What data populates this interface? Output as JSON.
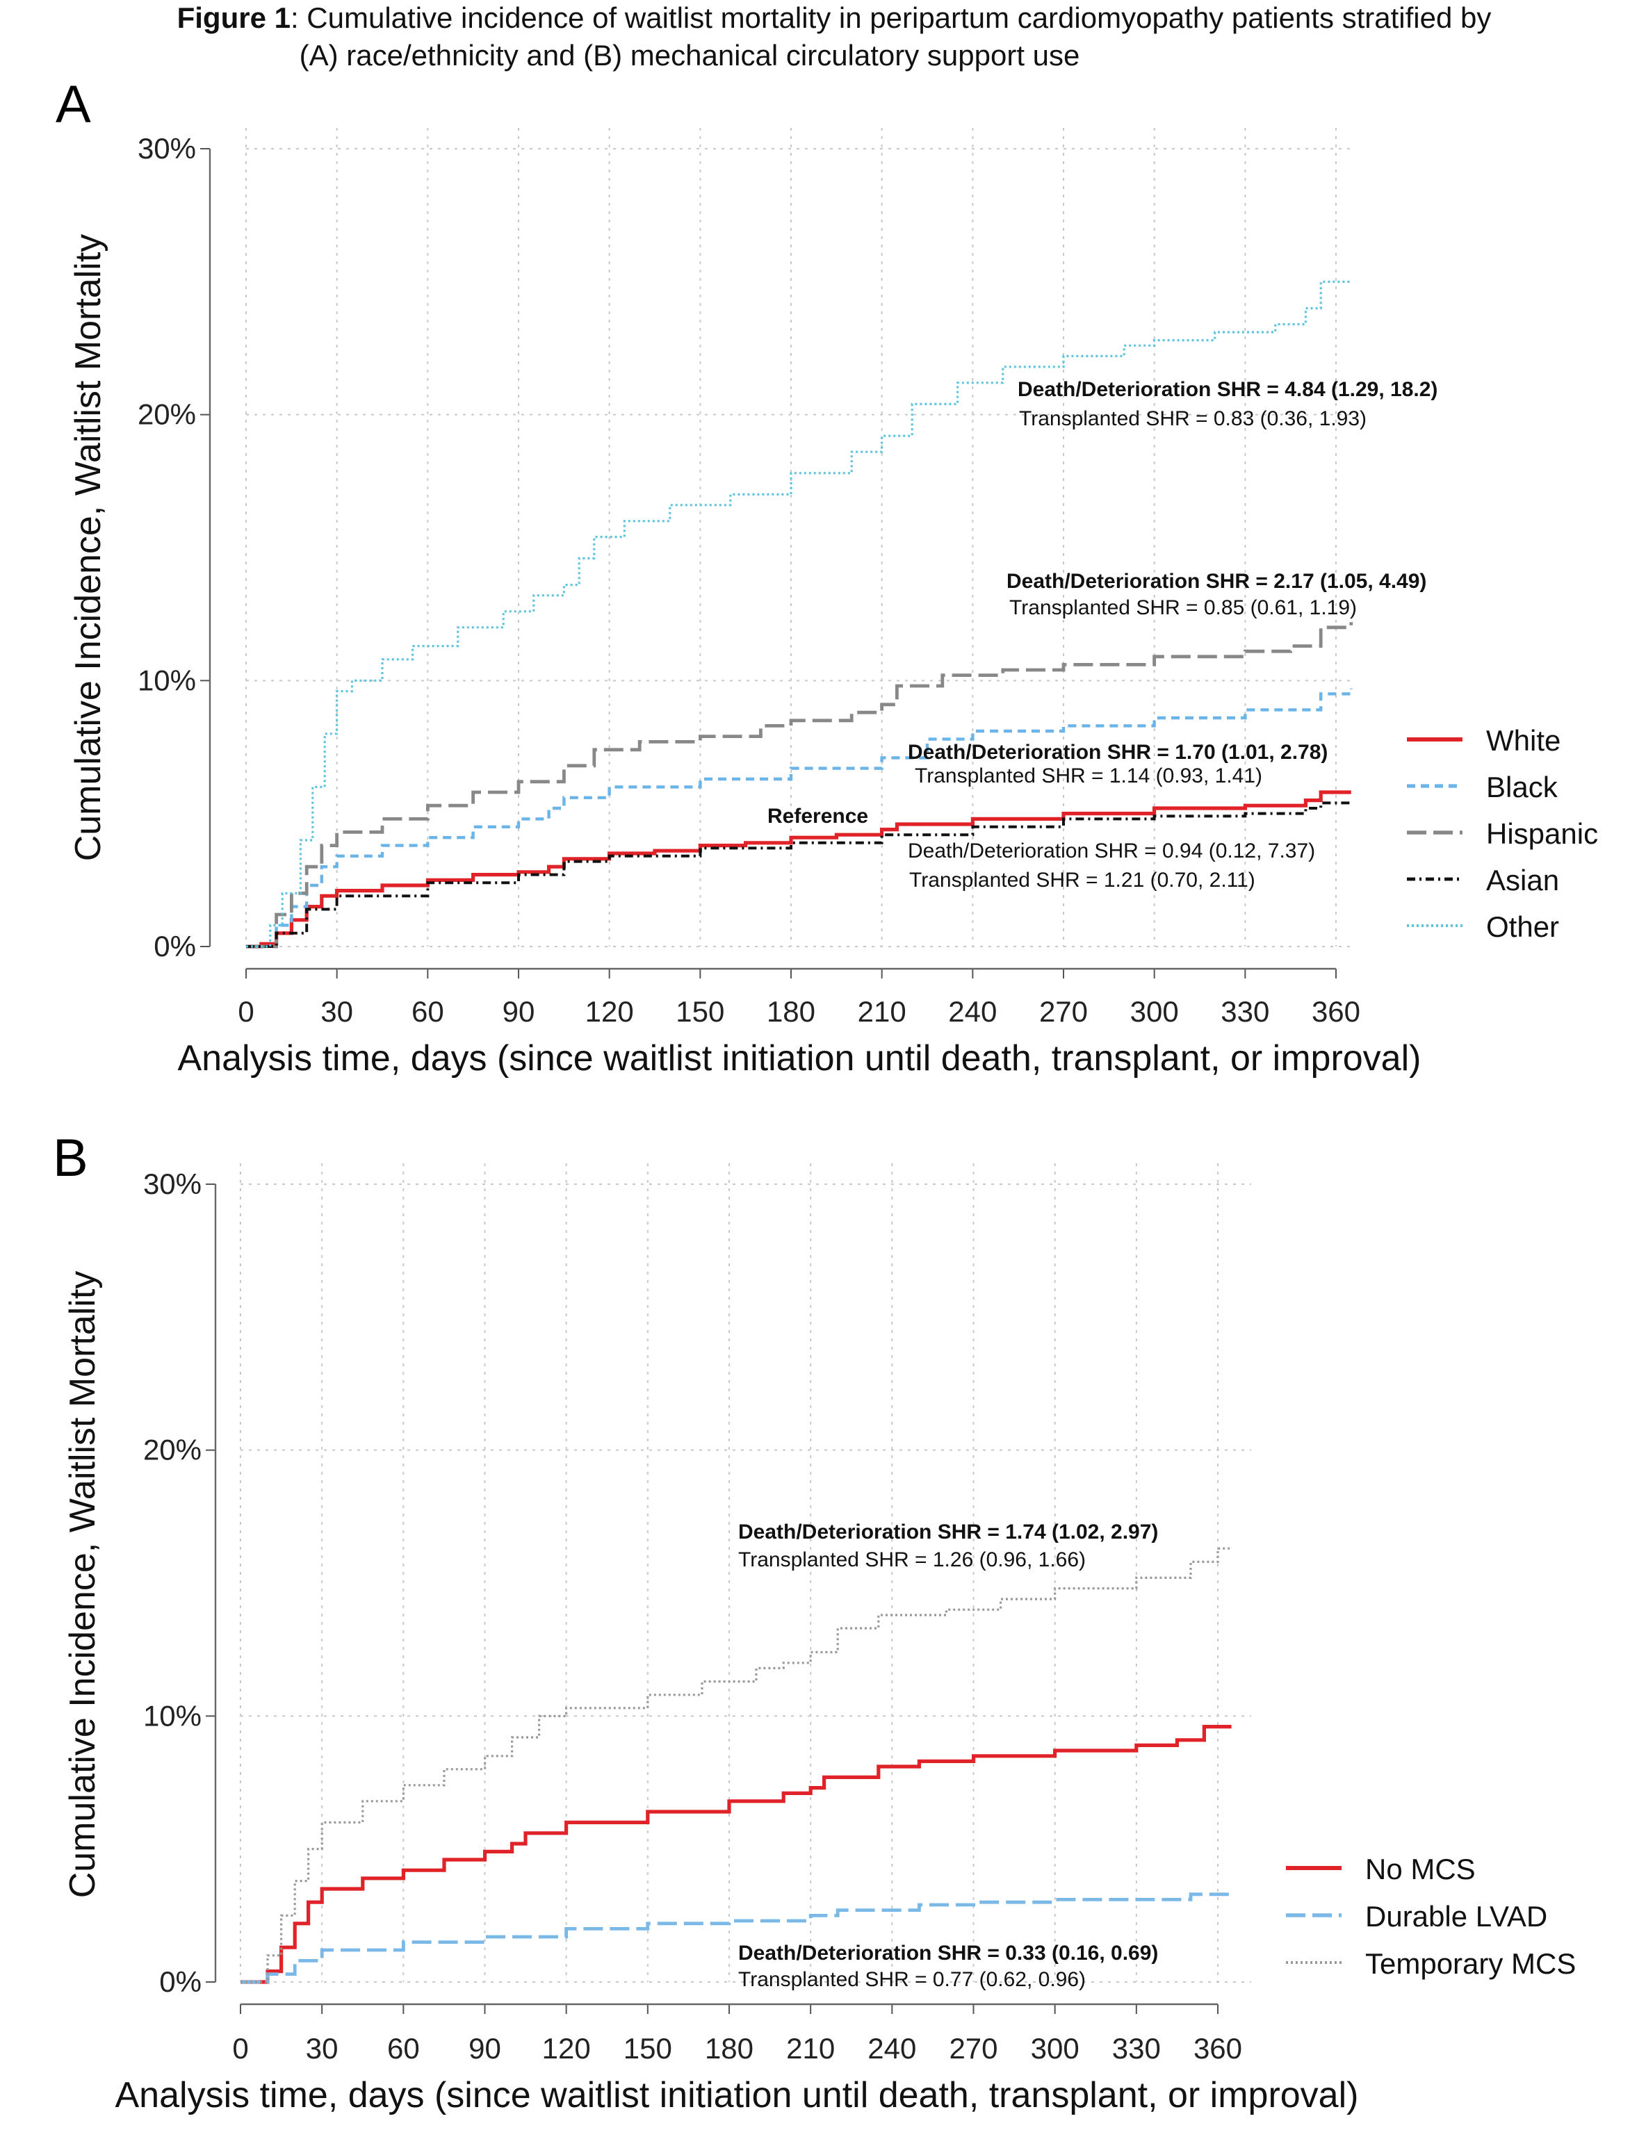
{
  "figure": {
    "title_bold": "Figure 1",
    "title_line1": ": Cumulative incidence of waitlist mortality in peripartum cardiomyopathy patients stratified by",
    "title_line2": "(A) race/ethnicity and (B) mechanical circulatory support use"
  },
  "chart_data": [
    {
      "type": "line",
      "panel_label": "A",
      "xlabel": "Analysis time, days (since waitlist initiation until death, transplant, or improval)",
      "ylabel": "Cumulative Incidence, Waitlist Mortality",
      "xlim": [
        0,
        365
      ],
      "ylim": [
        0,
        30
      ],
      "xticks": [
        "0",
        "30",
        "60",
        "90",
        "120",
        "150",
        "180",
        "210",
        "240",
        "270",
        "300",
        "330",
        "360"
      ],
      "yticks": [
        "0%",
        "10%",
        "20%",
        "30%"
      ],
      "grid": true,
      "legend_position": "right",
      "series": [
        {
          "name": "White",
          "color": "#e02229",
          "style": "solid",
          "x": [
            0,
            5,
            10,
            15,
            20,
            25,
            30,
            45,
            60,
            75,
            90,
            100,
            105,
            120,
            135,
            150,
            165,
            180,
            195,
            210,
            215,
            240,
            270,
            300,
            330,
            350,
            355,
            365
          ],
          "y": [
            0,
            0.1,
            0.5,
            1.0,
            1.5,
            1.9,
            2.1,
            2.3,
            2.5,
            2.7,
            2.8,
            3.0,
            3.3,
            3.5,
            3.6,
            3.8,
            3.9,
            4.1,
            4.2,
            4.4,
            4.6,
            4.8,
            5.0,
            5.2,
            5.3,
            5.5,
            5.8,
            5.8
          ]
        },
        {
          "name": "Black",
          "color": "#6ab4e8",
          "style": "dashed",
          "x": [
            0,
            10,
            15,
            20,
            25,
            30,
            45,
            60,
            75,
            90,
            100,
            105,
            120,
            150,
            180,
            210,
            225,
            240,
            270,
            300,
            330,
            355,
            365
          ],
          "y": [
            0,
            0.8,
            1.5,
            2.3,
            3.0,
            3.4,
            3.8,
            4.1,
            4.5,
            4.8,
            5.2,
            5.6,
            6.0,
            6.3,
            6.7,
            7.1,
            7.8,
            8.1,
            8.3,
            8.6,
            8.9,
            9.5,
            9.7
          ]
        },
        {
          "name": "Hispanic",
          "color": "#888888",
          "style": "longdash",
          "x": [
            0,
            10,
            15,
            20,
            25,
            30,
            45,
            60,
            75,
            90,
            105,
            115,
            130,
            150,
            170,
            180,
            200,
            210,
            215,
            230,
            250,
            270,
            300,
            330,
            345,
            355,
            365
          ],
          "y": [
            0,
            1.2,
            2.0,
            3.0,
            3.8,
            4.3,
            4.8,
            5.3,
            5.8,
            6.2,
            6.8,
            7.4,
            7.7,
            7.9,
            8.3,
            8.5,
            8.8,
            9.1,
            9.8,
            10.2,
            10.4,
            10.6,
            10.9,
            11.1,
            11.3,
            12.0,
            12.2
          ]
        },
        {
          "name": "Asian",
          "color": "#111111",
          "style": "dotdash",
          "x": [
            0,
            10,
            20,
            30,
            60,
            90,
            105,
            120,
            150,
            180,
            210,
            240,
            270,
            300,
            330,
            350,
            355,
            365
          ],
          "y": [
            0,
            0.5,
            1.4,
            1.9,
            2.4,
            2.7,
            3.2,
            3.4,
            3.7,
            3.9,
            4.2,
            4.5,
            4.8,
            4.9,
            5.0,
            5.2,
            5.4,
            5.4
          ]
        },
        {
          "name": "Other",
          "color": "#5cc4dc",
          "style": "dotted",
          "x": [
            0,
            8,
            12,
            18,
            22,
            26,
            30,
            35,
            45,
            55,
            70,
            85,
            95,
            105,
            110,
            115,
            125,
            140,
            160,
            180,
            200,
            210,
            220,
            235,
            250,
            270,
            290,
            300,
            320,
            340,
            350,
            355,
            365
          ],
          "y": [
            0,
            0.8,
            2,
            4,
            6,
            8,
            9.6,
            10,
            10.8,
            11.3,
            12,
            12.6,
            13.2,
            13.6,
            14.6,
            15.4,
            16,
            16.6,
            17,
            17.8,
            18.6,
            19.2,
            20.4,
            21.2,
            21.8,
            22.2,
            22.6,
            22.8,
            23.1,
            23.4,
            24,
            25,
            25
          ]
        }
      ],
      "annotations": [
        {
          "label": "Reference"
        },
        {
          "bold": "Death/Deterioration SHR = 4.84 (1.29, 18.2)",
          "plain": "Transplanted SHR = 0.83 (0.36, 1.93)"
        },
        {
          "bold": "Death/Deterioration SHR = 2.17 (1.05, 4.49)",
          "plain": "Transplanted SHR = 0.85 (0.61, 1.19)"
        },
        {
          "bold": "Death/Deterioration SHR = 1.70 (1.01, 2.78)",
          "plain": "Transplanted SHR = 1.14 (0.93, 1.41)"
        },
        {
          "line1": "Death/Deterioration SHR = 0.94 (0.12, 7.37)",
          "plain": "Transplanted SHR = 1.21 (0.70, 2.11)"
        }
      ]
    },
    {
      "type": "line",
      "panel_label": "B",
      "xlabel": "Analysis time, days (since waitlist initiation until death, transplant, or improval)",
      "ylabel": "Cumulative Incidence, Waitlist Mortality",
      "xlim": [
        0,
        365
      ],
      "ylim": [
        0,
        30
      ],
      "xticks": [
        "0",
        "30",
        "60",
        "90",
        "120",
        "150",
        "180",
        "210",
        "240",
        "270",
        "300",
        "330",
        "360"
      ],
      "yticks": [
        "0%",
        "10%",
        "20%",
        "30%"
      ],
      "grid": true,
      "legend_position": "right",
      "series": [
        {
          "name": "No MCS",
          "color": "#e02229",
          "style": "solid",
          "x": [
            0,
            10,
            15,
            20,
            25,
            30,
            45,
            60,
            75,
            90,
            100,
            105,
            120,
            150,
            180,
            200,
            210,
            215,
            235,
            250,
            270,
            300,
            330,
            345,
            355,
            365
          ],
          "y": [
            0,
            0.4,
            1.3,
            2.2,
            3.0,
            3.5,
            3.9,
            4.2,
            4.6,
            4.9,
            5.2,
            5.6,
            6.0,
            6.4,
            6.8,
            7.1,
            7.3,
            7.7,
            8.1,
            8.3,
            8.5,
            8.7,
            8.9,
            9.1,
            9.6,
            9.6
          ]
        },
        {
          "name": "Durable LVAD",
          "color": "#7ab8e8",
          "style": "longdash",
          "x": [
            0,
            10,
            20,
            30,
            60,
            90,
            120,
            150,
            180,
            210,
            220,
            250,
            270,
            300,
            330,
            350,
            365
          ],
          "y": [
            0,
            0.3,
            0.8,
            1.2,
            1.5,
            1.7,
            2.0,
            2.2,
            2.3,
            2.5,
            2.7,
            2.9,
            3.0,
            3.1,
            3.1,
            3.3,
            3.3
          ]
        },
        {
          "name": "Temporary MCS",
          "color": "#999999",
          "style": "dotted",
          "x": [
            0,
            10,
            15,
            20,
            25,
            30,
            45,
            60,
            75,
            90,
            100,
            110,
            120,
            150,
            170,
            190,
            200,
            210,
            220,
            235,
            260,
            280,
            300,
            330,
            350,
            360,
            365
          ],
          "y": [
            0,
            1,
            2.5,
            3.8,
            5,
            6,
            6.8,
            7.4,
            8.0,
            8.5,
            9.2,
            10.0,
            10.3,
            10.8,
            11.3,
            11.8,
            12.0,
            12.4,
            13.3,
            13.8,
            14.0,
            14.4,
            14.8,
            15.2,
            15.8,
            16.3,
            16.3
          ]
        }
      ],
      "annotations": [
        {
          "bold": "Death/Deterioration SHR = 1.74 (1.02, 2.97)",
          "plain": "Transplanted SHR = 1.26 (0.96, 1.66)"
        },
        {
          "bold": "Death/Deterioration SHR = 0.33 (0.16, 0.69)",
          "plain": "Transplanted SHR = 0.77 (0.62, 0.96)"
        }
      ]
    }
  ]
}
